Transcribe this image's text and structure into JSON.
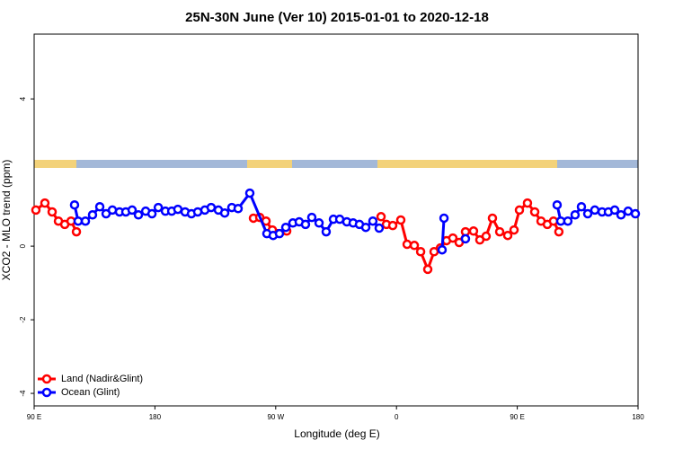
{
  "chart_data": {
    "type": "line",
    "title": "25N-30N June (Ver 10)   2015-01-01 to 2020-12-18",
    "x_label": "Longitude (deg E)",
    "y_label": "XCO2 - MLO trend (ppm)",
    "xlim": [
      90,
      540
    ],
    "ylim": [
      -4.34,
      5.76
    ],
    "xticks": [
      {
        "value": 90,
        "label": "90 E"
      },
      180,
      {
        "value": 270,
        "label": "90 W"
      },
      {
        "value": 360,
        "label": "0"
      },
      {
        "value": 450,
        "label": "90 E"
      },
      {
        "value": 540,
        "label": "180"
      }
    ],
    "yticks": [
      -4,
      -2,
      0,
      4
    ],
    "legend": "bottomleft",
    "series": [
      {
        "name": "Land (Nadir&Glint)",
        "color": "#ff0000",
        "x": [
          91.3,
          98.0,
          103.4,
          108.1,
          112.8,
          117.5,
          121.5,
          null,
          253.4,
          258.1,
          262.8,
          267.5,
          278.2,
          null,
          348.5,
          352.5,
          357.2,
          363.2,
          367.9,
          373.3,
          378.0,
          383.3,
          388.0,
          392.7,
          397.3,
          402.0,
          406.7,
          411.4,
          417.4,
          422.1,
          426.8,
          431.5,
          436.9,
          442.9,
          447.6,
          451.6,
          457.6,
          463.0,
          467.7,
          472.4,
          477.0,
          481.0
        ],
        "values": [
          0.98,
          1.17,
          0.93,
          0.68,
          0.59,
          0.68,
          0.39,
          null,
          0.76,
          0.78,
          0.68,
          0.44,
          0.41,
          null,
          0.8,
          0.59,
          0.56,
          0.71,
          0.05,
          0.02,
          -0.15,
          -0.63,
          -0.15,
          -0.05,
          0.15,
          0.22,
          0.1,
          0.39,
          0.41,
          0.17,
          0.27,
          0.76,
          0.39,
          0.29,
          0.44,
          0.98,
          1.17,
          0.93,
          0.68,
          0.59,
          0.68,
          0.39
        ]
      },
      {
        "name": "Ocean (Glint)",
        "color": "#0000ff",
        "x": [
          120.1,
          122.8,
          128.2,
          133.5,
          138.9,
          143.6,
          148.3,
          153.6,
          158.3,
          163.0,
          167.7,
          173.1,
          177.8,
          182.5,
          187.8,
          192.5,
          197.1,
          202.5,
          207.2,
          211.9,
          217.2,
          221.9,
          227.3,
          232.0,
          237.3,
          242.0,
          250.7,
          263.4,
          268.1,
          272.8,
          277.5,
          282.8,
          287.5,
          292.2,
          296.9,
          302.3,
          307.6,
          313.0,
          317.7,
          323.0,
          327.7,
          332.4,
          337.1,
          342.4,
          347.1,
          null,
          394.0,
          395.4,
          null,
          411.4,
          null,
          479.7,
          482.4,
          487.7,
          493.1,
          497.8,
          502.5,
          507.8,
          513.2,
          517.9,
          522.6,
          527.3,
          532.6,
          538.0
        ],
        "values": [
          1.12,
          0.68,
          0.68,
          0.85,
          1.07,
          0.88,
          0.98,
          0.93,
          0.93,
          0.98,
          0.85,
          0.95,
          0.88,
          1.05,
          0.95,
          0.95,
          1.0,
          0.93,
          0.88,
          0.93,
          0.98,
          1.05,
          0.98,
          0.9,
          1.05,
          1.02,
          1.44,
          0.34,
          0.29,
          0.34,
          0.51,
          0.63,
          0.66,
          0.59,
          0.78,
          0.63,
          0.39,
          0.73,
          0.73,
          0.66,
          0.63,
          0.59,
          0.51,
          0.68,
          0.49,
          null,
          -0.1,
          0.76,
          null,
          0.2,
          null,
          1.12,
          0.68,
          0.68,
          0.85,
          1.07,
          0.88,
          0.98,
          0.93,
          0.93,
          0.98,
          0.85,
          0.95,
          0.88
        ]
      }
    ]
  }
}
